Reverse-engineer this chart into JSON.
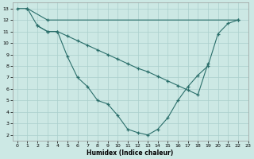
{
  "xlabel": "Humidex (Indice chaleur)",
  "background_color": "#cce8e4",
  "grid_color": "#aacfcc",
  "line_color": "#2a6e6a",
  "xlim": [
    -0.5,
    23
  ],
  "ylim": [
    1.5,
    13.5
  ],
  "xticks": [
    0,
    1,
    2,
    3,
    4,
    5,
    6,
    7,
    8,
    9,
    10,
    11,
    12,
    13,
    14,
    15,
    16,
    17,
    18,
    19,
    20,
    21,
    22,
    23
  ],
  "yticks": [
    2,
    3,
    4,
    5,
    6,
    7,
    8,
    9,
    10,
    11,
    12,
    13
  ],
  "line1_x": [
    0,
    1,
    2,
    3,
    4,
    5,
    6,
    7,
    8,
    9,
    10,
    11,
    12,
    13,
    14,
    15,
    16,
    17,
    18,
    19,
    20,
    21,
    22
  ],
  "line1_y": [
    13,
    13,
    11.5,
    11,
    11,
    8.8,
    7.0,
    6.2,
    5.0,
    4.7,
    3.7,
    2.5,
    2.2,
    2.0,
    2.5,
    3.5,
    5.0,
    6.2,
    7.2,
    8.0,
    10.8,
    11.7,
    12.0
  ],
  "line2_x": [
    1,
    3,
    22
  ],
  "line2_y": [
    13,
    12.0,
    12.0
  ],
  "line3_x": [
    2,
    3,
    4,
    5,
    6,
    7,
    8,
    9,
    10,
    11,
    12,
    13,
    14,
    15,
    16,
    17,
    18,
    19
  ],
  "line3_y": [
    11.5,
    11.0,
    11.0,
    10.6,
    10.2,
    9.8,
    9.4,
    9.0,
    8.6,
    8.2,
    7.8,
    7.5,
    7.1,
    6.7,
    6.3,
    5.9,
    5.5,
    8.2
  ]
}
